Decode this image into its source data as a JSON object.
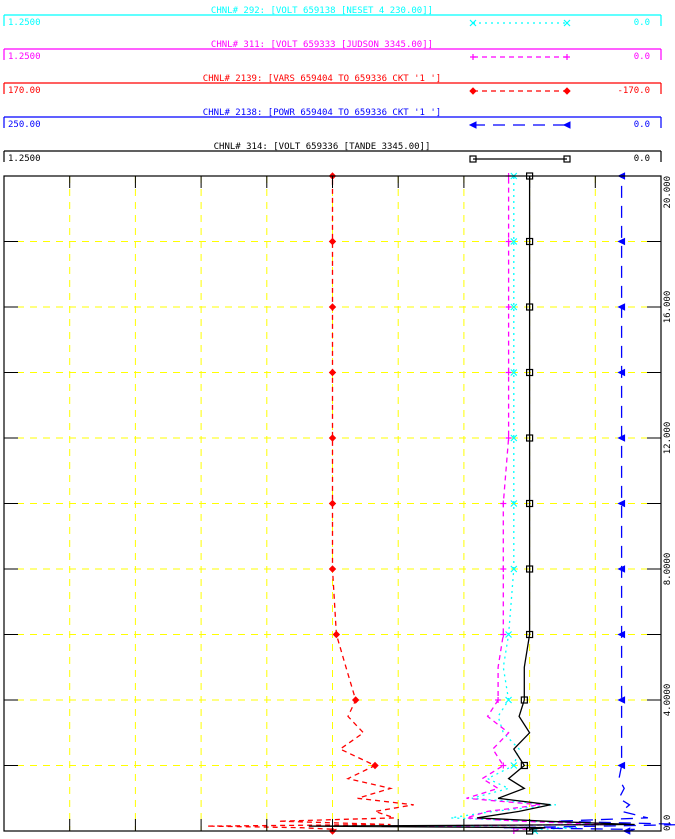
{
  "chart_data": {
    "type": "line",
    "title": "",
    "xlabel": "",
    "ylabel": "",
    "xlim": [
      0,
      20
    ],
    "x_tick_values": [
      0,
      4,
      8,
      12,
      16,
      20
    ],
    "x_tick_labels": [
      "0.0",
      "4.0000",
      "8.0000",
      "12.000",
      "16.000",
      "20.000"
    ],
    "grid": true,
    "grid_color": "#ffff00",
    "series": [
      {
        "name": "CHNL# 292: [VOLT 659138 [NESET  4    230.00]]",
        "color": "#00ffff",
        "dash": "dotted",
        "marker": "x",
        "scale_left": "1.2500",
        "scale_right": "0.0",
        "x": [
          0,
          0.05,
          0.1,
          0.15,
          0.2,
          0.3,
          0.4,
          0.6,
          0.8,
          1,
          1.3,
          1.6,
          2,
          2.5,
          3,
          3.5,
          4,
          5,
          6,
          8,
          10,
          12,
          14,
          16,
          18,
          20
        ],
        "y": [
          1.01,
          1.02,
          1.09,
          0.75,
          1.18,
          1.0,
          0.85,
          0.93,
          1.05,
          0.89,
          0.96,
          0.92,
          0.97,
          0.98,
          0.95,
          0.94,
          0.96,
          0.95,
          0.96,
          0.97,
          0.97,
          0.97,
          0.97,
          0.97,
          0.97,
          0.97
        ]
      },
      {
        "name": "CHNL# 311: [VOLT 659333 [JUDSON      3345.00]]",
        "color": "#ff00ff",
        "dash": "dashed",
        "marker": "+",
        "scale_left": "1.2500",
        "scale_right": "0.0",
        "x": [
          0,
          0.05,
          0.1,
          0.15,
          0.2,
          0.3,
          0.4,
          0.6,
          0.8,
          1,
          1.3,
          1.6,
          2,
          2.5,
          3,
          3.5,
          4,
          5,
          6,
          8,
          10,
          12,
          14,
          16,
          18,
          20
        ],
        "y": [
          0.97,
          0.98,
          1.04,
          0.72,
          1.15,
          0.98,
          0.88,
          0.92,
          1.02,
          0.88,
          0.94,
          0.91,
          0.95,
          0.93,
          0.96,
          0.92,
          0.94,
          0.94,
          0.95,
          0.95,
          0.95,
          0.96,
          0.96,
          0.96,
          0.96,
          0.96
        ]
      },
      {
        "name": "CHNL# 2139: [VARS 659404 TO 659336 CKT '1 ']",
        "color": "#ff0000",
        "dash": "dashed",
        "marker": "diamond",
        "scale_left": "170.00",
        "scale_right": "-170.0",
        "x": [
          0,
          0.05,
          0.1,
          0.15,
          0.2,
          0.3,
          0.4,
          0.6,
          0.8,
          1,
          1.3,
          1.6,
          2,
          2.5,
          3,
          3.5,
          4,
          5,
          6,
          8,
          10,
          12,
          14,
          16,
          18,
          20
        ],
        "y": [
          0,
          2,
          -16,
          -65,
          30,
          -28,
          32,
          22,
          42,
          13,
          30,
          8,
          22,
          4,
          16,
          8,
          12,
          7,
          2,
          0,
          0,
          0,
          0,
          0,
          0,
          0
        ]
      },
      {
        "name": "CHNL# 2138: [POWR 659404 TO 659336 CKT '1 ']",
        "color": "#0000ff",
        "dash": "longdash",
        "marker": "arrow",
        "scale_left": "250.00",
        "scale_right": "0.0",
        "x": [
          0,
          0.05,
          0.1,
          0.15,
          0.2,
          0.3,
          0.4,
          0.6,
          0.8,
          1,
          1.3,
          1.6,
          2,
          2.5,
          3,
          3.5,
          4,
          5,
          6,
          8,
          10,
          12,
          14,
          16,
          18,
          20
        ],
        "y": [
          237,
          240,
          190,
          228,
          260,
          210,
          245,
          235,
          238,
          234,
          236,
          234,
          235,
          235,
          235,
          235,
          235,
          235,
          235,
          235,
          235,
          235,
          235,
          235,
          235,
          235
        ]
      },
      {
        "name": "CHNL# 314: [VOLT 659336 [TANDE       3345.00]]",
        "color": "#000000",
        "dash": "solid",
        "marker": "square",
        "scale_left": "1.2500",
        "scale_right": "0.0",
        "x": [
          0,
          0.05,
          0.1,
          0.15,
          0.2,
          0.3,
          0.4,
          0.6,
          0.8,
          1,
          1.3,
          1.6,
          2,
          2.5,
          3,
          3.5,
          4,
          5,
          6,
          8,
          10,
          12,
          14,
          16,
          18,
          20
        ],
        "y": [
          1.0,
          1.0,
          1.03,
          0.58,
          1.2,
          1.03,
          0.9,
          0.98,
          1.04,
          0.94,
          0.99,
          0.96,
          0.99,
          0.97,
          1.0,
          0.98,
          0.99,
          0.99,
          1.0,
          1.0,
          1.0,
          1.0,
          1.0,
          1.0,
          1.0,
          1.0
        ]
      }
    ]
  }
}
